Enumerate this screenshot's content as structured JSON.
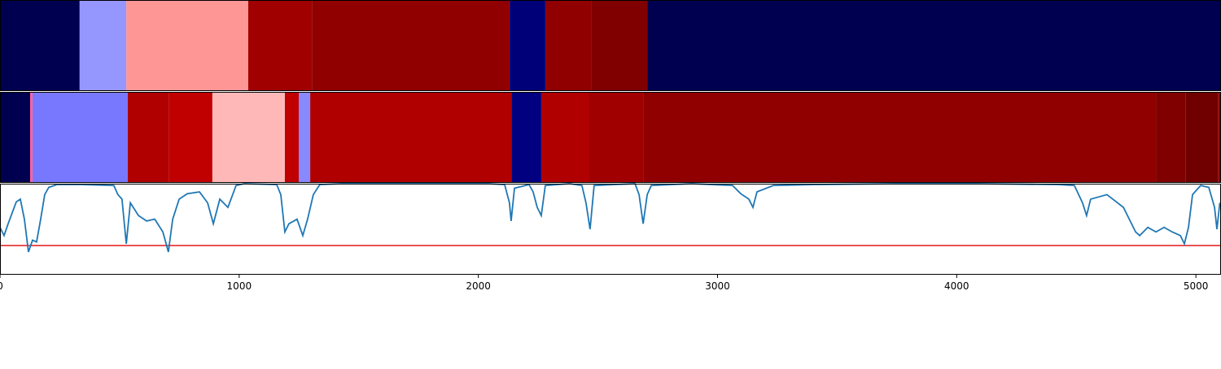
{
  "chart_data": [
    {
      "type": "segment",
      "xlim": [
        0,
        5105
      ],
      "starts": [
        0,
        333,
        528,
        1038,
        1304,
        2131,
        2280,
        2474,
        2706
      ],
      "ends": [
        333,
        528,
        1038,
        1304,
        2131,
        2280,
        2474,
        2706,
        5105
      ],
      "colors": [
        "#000050",
        "#9696ff",
        "#ff9696",
        "#a00000",
        "#900000",
        "#000078",
        "#900000",
        "#800000",
        "#000050"
      ]
    },
    {
      "type": "segment",
      "xlim": [
        0,
        5105
      ],
      "starts": [
        0,
        126,
        136,
        534,
        705,
        888,
        1191,
        1249,
        1297,
        2138,
        2263,
        2464,
        2689,
        4833,
        4956,
        5092
      ],
      "ends": [
        126,
        136,
        534,
        705,
        888,
        1191,
        1249,
        1297,
        2138,
        2263,
        2464,
        2689,
        4833,
        4956,
        5092,
        5105
      ],
      "colors": [
        "#000050",
        "#ff60a0",
        "#7878ff",
        "#b00000",
        "#c00000",
        "#ffb8b8",
        "#c00000",
        "#8888ff",
        "#b00000",
        "#000080",
        "#b00000",
        "#a00000",
        "#900000",
        "#800000",
        "#700000",
        "#900000"
      ]
    },
    {
      "type": "line",
      "xlim": [
        0,
        5105
      ],
      "ylim": [
        0,
        1
      ],
      "color": "#1f77b4",
      "xticks": [
        0,
        1000,
        2000,
        3000,
        4000,
        5000
      ],
      "threshold": 0.32,
      "threshold_color": "#e41a1c",
      "x": [
        0,
        17,
        34,
        51,
        68,
        85,
        102,
        119,
        136,
        153,
        170,
        187,
        204,
        238,
        340,
        476,
        493,
        510,
        528,
        545,
        579,
        613,
        647,
        681,
        704,
        722,
        749,
        783,
        834,
        868,
        892,
        919,
        953,
        987,
        1021,
        1157,
        1174,
        1191,
        1208,
        1242,
        1266,
        1286,
        1310,
        1337,
        1429,
        2042,
        2110,
        2130,
        2137,
        2151,
        2212,
        2229,
        2246,
        2263,
        2280,
        2382,
        2433,
        2450,
        2467,
        2484,
        2655,
        2672,
        2689,
        2706,
        2723,
        2893,
        3063,
        3097,
        3131,
        3148,
        3165,
        3233,
        3403,
        3744,
        4084,
        4424,
        4492,
        4526,
        4543,
        4560,
        4628,
        4697,
        4748,
        4765,
        4799,
        4833,
        4867,
        4901,
        4935,
        4952,
        4969,
        4986,
        5020,
        5054,
        5078,
        5088,
        5100
      ],
      "values": [
        0.52,
        0.43,
        0.56,
        0.68,
        0.8,
        0.83,
        0.61,
        0.25,
        0.38,
        0.36,
        0.61,
        0.88,
        0.96,
        0.99,
        0.99,
        0.98,
        0.88,
        0.83,
        0.34,
        0.79,
        0.65,
        0.59,
        0.61,
        0.47,
        0.25,
        0.61,
        0.83,
        0.89,
        0.91,
        0.79,
        0.56,
        0.83,
        0.74,
        0.98,
        1.0,
        0.99,
        0.88,
        0.47,
        0.56,
        0.61,
        0.43,
        0.61,
        0.88,
        0.99,
        1.0,
        1.0,
        0.99,
        0.79,
        0.59,
        0.95,
        0.99,
        0.91,
        0.74,
        0.65,
        0.98,
        1.0,
        0.98,
        0.79,
        0.5,
        0.98,
        1.0,
        0.88,
        0.56,
        0.88,
        0.98,
        1.0,
        0.98,
        0.89,
        0.83,
        0.74,
        0.91,
        0.98,
        0.99,
        1.0,
        1.0,
        0.99,
        0.98,
        0.79,
        0.65,
        0.83,
        0.88,
        0.74,
        0.47,
        0.43,
        0.52,
        0.47,
        0.52,
        0.47,
        0.43,
        0.34,
        0.52,
        0.88,
        0.98,
        0.96,
        0.74,
        0.5,
        0.79
      ]
    }
  ]
}
